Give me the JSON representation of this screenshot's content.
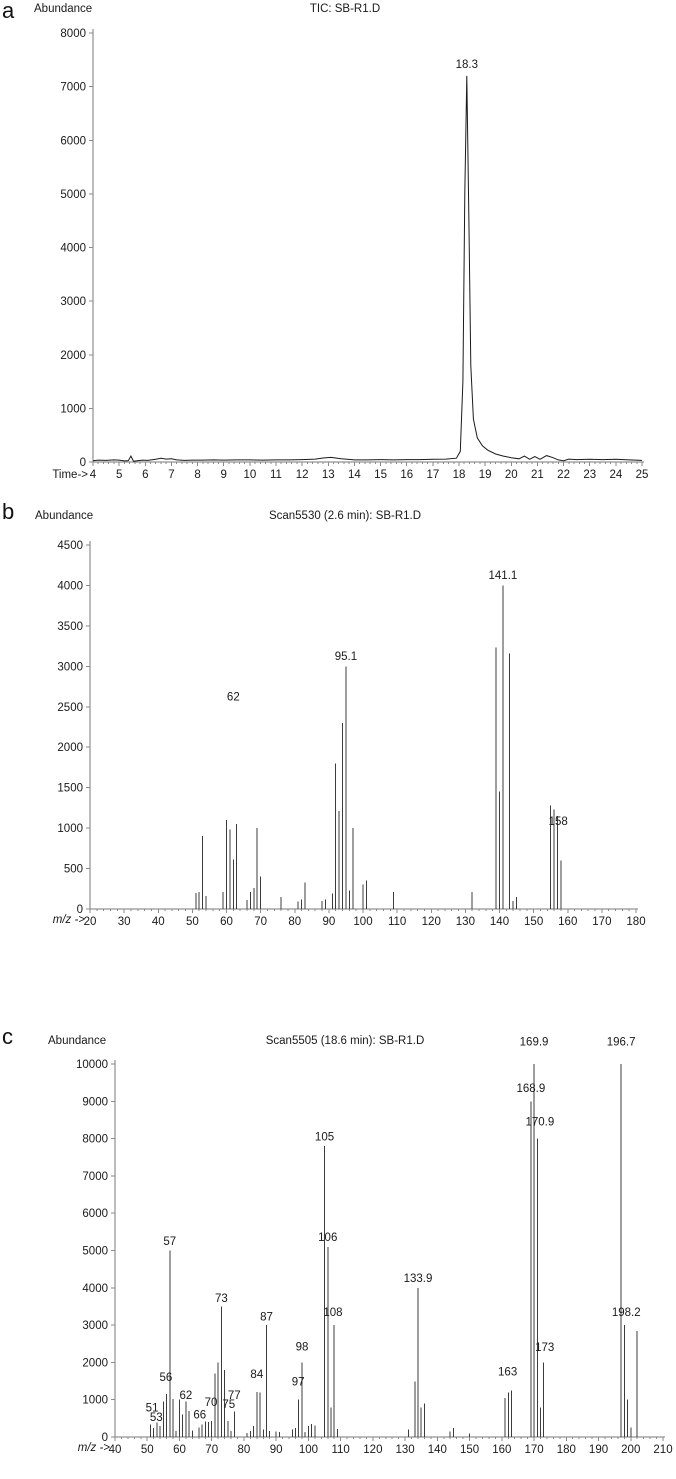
{
  "figure_caption_letters": [
    "a",
    "b",
    "c"
  ],
  "chart_data": [
    {
      "type": "line",
      "panel_letter": "a",
      "title": "TIC: SB-R1.D",
      "ylabel": "Abundance",
      "xlabel": "Time->",
      "xlim": [
        4,
        25
      ],
      "ylim": [
        0,
        8000
      ],
      "x_ticks": [
        4,
        5,
        6,
        7,
        8,
        9,
        10,
        11,
        12,
        13,
        14,
        15,
        16,
        17,
        18,
        19,
        20,
        21,
        22,
        23,
        24,
        25
      ],
      "x_minor_step": 0.2,
      "y_ticks": [
        0,
        1000,
        2000,
        3000,
        4000,
        5000,
        6000,
        7000,
        8000
      ],
      "grid": false,
      "legend": "none",
      "points": [
        [
          4.0,
          25
        ],
        [
          4.2,
          35
        ],
        [
          4.5,
          30
        ],
        [
          4.8,
          40
        ],
        [
          5.0,
          35
        ],
        [
          5.2,
          20
        ],
        [
          5.35,
          25
        ],
        [
          5.45,
          110
        ],
        [
          5.55,
          15
        ],
        [
          5.7,
          25
        ],
        [
          5.9,
          35
        ],
        [
          6.1,
          30
        ],
        [
          6.4,
          50
        ],
        [
          6.6,
          70
        ],
        [
          6.8,
          55
        ],
        [
          7.0,
          60
        ],
        [
          7.2,
          40
        ],
        [
          7.5,
          30
        ],
        [
          7.8,
          35
        ],
        [
          8.2,
          35
        ],
        [
          8.6,
          40
        ],
        [
          9.0,
          35
        ],
        [
          9.5,
          40
        ],
        [
          10.0,
          40
        ],
        [
          10.5,
          35
        ],
        [
          11.0,
          40
        ],
        [
          11.5,
          40
        ],
        [
          12.0,
          45
        ],
        [
          12.5,
          55
        ],
        [
          12.8,
          75
        ],
        [
          13.1,
          85
        ],
        [
          13.5,
          60
        ],
        [
          14.0,
          40
        ],
        [
          14.5,
          40
        ],
        [
          15.0,
          45
        ],
        [
          15.5,
          40
        ],
        [
          16.0,
          45
        ],
        [
          16.5,
          45
        ],
        [
          17.0,
          50
        ],
        [
          17.5,
          55
        ],
        [
          17.9,
          70
        ],
        [
          18.05,
          200
        ],
        [
          18.15,
          1500
        ],
        [
          18.22,
          5000
        ],
        [
          18.3,
          7200
        ],
        [
          18.38,
          4500
        ],
        [
          18.45,
          1800
        ],
        [
          18.55,
          800
        ],
        [
          18.7,
          450
        ],
        [
          18.9,
          300
        ],
        [
          19.1,
          220
        ],
        [
          19.4,
          150
        ],
        [
          19.7,
          110
        ],
        [
          20.0,
          80
        ],
        [
          20.3,
          60
        ],
        [
          20.5,
          110
        ],
        [
          20.7,
          50
        ],
        [
          20.9,
          100
        ],
        [
          21.1,
          50
        ],
        [
          21.35,
          120
        ],
        [
          21.6,
          80
        ],
        [
          21.8,
          40
        ],
        [
          22.0,
          25
        ],
        [
          22.2,
          55
        ],
        [
          22.5,
          45
        ],
        [
          23.0,
          50
        ],
        [
          23.5,
          45
        ],
        [
          24.0,
          50
        ],
        [
          24.5,
          40
        ],
        [
          25.0,
          30
        ]
      ],
      "peak_labels": [
        {
          "text": "18.3",
          "x": 18.3,
          "y": 7350
        }
      ]
    },
    {
      "type": "bar",
      "panel_letter": "b",
      "title": "Scan5530 (2.6 min): SB-R1.D",
      "ylabel": "Abundance",
      "xlabel": "m/z ->",
      "xlim": [
        20,
        180
      ],
      "ylim": [
        0,
        4500
      ],
      "x_ticks": [
        20,
        30,
        40,
        50,
        60,
        70,
        80,
        90,
        100,
        110,
        120,
        130,
        140,
        150,
        160,
        170,
        180
      ],
      "x_minor_step": 2,
      "y_ticks": [
        0,
        500,
        1000,
        1500,
        2000,
        2500,
        3000,
        3500,
        4000,
        4500
      ],
      "grid": false,
      "legend": "none",
      "sticks": [
        [
          51,
          200
        ],
        [
          52,
          210
        ],
        [
          53,
          900
        ],
        [
          54,
          160
        ],
        [
          59,
          210
        ],
        [
          60,
          1100
        ],
        [
          61,
          980
        ],
        [
          62,
          610
        ],
        [
          63,
          1050
        ],
        [
          66,
          110
        ],
        [
          67,
          210
        ],
        [
          68,
          260
        ],
        [
          69,
          1000
        ],
        [
          70,
          400
        ],
        [
          76,
          150
        ],
        [
          81,
          95
        ],
        [
          82,
          115
        ],
        [
          83,
          330
        ],
        [
          88,
          100
        ],
        [
          89,
          115
        ],
        [
          91,
          190
        ],
        [
          92,
          1800
        ],
        [
          93,
          1210
        ],
        [
          94,
          2300
        ],
        [
          95,
          3000
        ],
        [
          96,
          230
        ],
        [
          97,
          1000
        ],
        [
          100,
          300
        ],
        [
          101,
          350
        ],
        [
          109,
          210
        ],
        [
          132,
          210
        ],
        [
          139,
          3230
        ],
        [
          140,
          1450
        ],
        [
          141,
          4000
        ],
        [
          143,
          3160
        ],
        [
          144,
          100
        ],
        [
          145,
          150
        ],
        [
          155,
          1280
        ],
        [
          156,
          1230
        ],
        [
          157,
          1150
        ],
        [
          158,
          600
        ]
      ],
      "peak_labels": [
        {
          "text": "62",
          "x": 62,
          "y": 2580
        },
        {
          "text": "95.1",
          "x": 95,
          "y": 3080
        },
        {
          "text": "141.1",
          "x": 141,
          "y": 4080
        },
        {
          "text": "158",
          "x": 157.2,
          "y": 1040
        }
      ]
    },
    {
      "type": "bar",
      "panel_letter": "c",
      "title": "Scan5505 (18.6 min): SB-R1.D",
      "ylabel": "Abundance",
      "xlabel": "m/z ->",
      "xlim": [
        40,
        210
      ],
      "ylim": [
        0,
        10000
      ],
      "x_ticks": [
        40,
        50,
        60,
        70,
        80,
        90,
        100,
        110,
        120,
        130,
        140,
        150,
        160,
        170,
        180,
        190,
        200,
        210
      ],
      "x_minor_step": 2,
      "y_ticks": [
        0,
        1000,
        2000,
        3000,
        4000,
        5000,
        6000,
        7000,
        8000,
        9000,
        10000
      ],
      "grid": false,
      "legend": "none",
      "sticks": [
        [
          51,
          330
        ],
        [
          52,
          240
        ],
        [
          53,
          390
        ],
        [
          54,
          290
        ],
        [
          55,
          950
        ],
        [
          56,
          1150
        ],
        [
          57,
          5000
        ],
        [
          58,
          1020
        ],
        [
          59,
          160
        ],
        [
          60,
          1000
        ],
        [
          61,
          600
        ],
        [
          62,
          950
        ],
        [
          63,
          700
        ],
        [
          64,
          180
        ],
        [
          66,
          260
        ],
        [
          67,
          330
        ],
        [
          68,
          420
        ],
        [
          69,
          400
        ],
        [
          70,
          430
        ],
        [
          71,
          1700
        ],
        [
          72,
          2000
        ],
        [
          73,
          3500
        ],
        [
          74,
          1800
        ],
        [
          75,
          430
        ],
        [
          76,
          160
        ],
        [
          77,
          690
        ],
        [
          81,
          110
        ],
        [
          82,
          160
        ],
        [
          83,
          290
        ],
        [
          84,
          1210
        ],
        [
          85,
          1190
        ],
        [
          86,
          200
        ],
        [
          87,
          3000
        ],
        [
          88,
          160
        ],
        [
          90,
          150
        ],
        [
          91,
          140
        ],
        [
          95,
          200
        ],
        [
          96,
          240
        ],
        [
          97,
          1000
        ],
        [
          98,
          2000
        ],
        [
          99,
          140
        ],
        [
          100,
          300
        ],
        [
          101,
          350
        ],
        [
          102,
          310
        ],
        [
          105,
          7800
        ],
        [
          106,
          5100
        ],
        [
          107,
          790
        ],
        [
          108,
          3000
        ],
        [
          109,
          210
        ],
        [
          131,
          200
        ],
        [
          133,
          1490
        ],
        [
          134,
          4000
        ],
        [
          135,
          790
        ],
        [
          136,
          900
        ],
        [
          144,
          150
        ],
        [
          145,
          240
        ],
        [
          150,
          100
        ],
        [
          161,
          1050
        ],
        [
          162,
          1190
        ],
        [
          163,
          1250
        ],
        [
          169,
          9000
        ],
        [
          170,
          10000
        ],
        [
          171,
          8000
        ],
        [
          172,
          790
        ],
        [
          173,
          2000
        ],
        [
          197,
          10000
        ],
        [
          198,
          3000
        ],
        [
          199,
          1000
        ],
        [
          200,
          260
        ],
        [
          202,
          2840
        ]
      ],
      "peak_labels": [
        {
          "text": "51",
          "x": 51.5,
          "y": 680
        },
        {
          "text": "53",
          "x": 52.8,
          "y": 430
        },
        {
          "text": "56",
          "x": 55.8,
          "y": 1500
        },
        {
          "text": "57",
          "x": 57,
          "y": 5150
        },
        {
          "text": "62",
          "x": 62,
          "y": 1020
        },
        {
          "text": "66",
          "x": 66.3,
          "y": 500
        },
        {
          "text": "70",
          "x": 69.8,
          "y": 830
        },
        {
          "text": "73",
          "x": 73,
          "y": 3620
        },
        {
          "text": "75",
          "x": 75.3,
          "y": 780
        },
        {
          "text": "77",
          "x": 77,
          "y": 1020
        },
        {
          "text": "84",
          "x": 84,
          "y": 1580
        },
        {
          "text": "87",
          "x": 87,
          "y": 3120
        },
        {
          "text": "97",
          "x": 96.8,
          "y": 1380
        },
        {
          "text": "98",
          "x": 98,
          "y": 2320
        },
        {
          "text": "105",
          "x": 105,
          "y": 7950
        },
        {
          "text": "106",
          "x": 106,
          "y": 5250
        },
        {
          "text": "108",
          "x": 107.6,
          "y": 3250
        },
        {
          "text": "133.9",
          "x": 134,
          "y": 4150
        },
        {
          "text": "163",
          "x": 161.8,
          "y": 1650
        },
        {
          "text": "168.9",
          "x": 169,
          "y": 9250
        },
        {
          "text": "169.9",
          "x": 170,
          "y": 10500
        },
        {
          "text": "170.9",
          "x": 171.8,
          "y": 8350
        },
        {
          "text": "173",
          "x": 173.3,
          "y": 2300
        },
        {
          "text": "196.7",
          "x": 197,
          "y": 10500
        },
        {
          "text": "198.2",
          "x": 198.6,
          "y": 3250
        }
      ]
    }
  ]
}
